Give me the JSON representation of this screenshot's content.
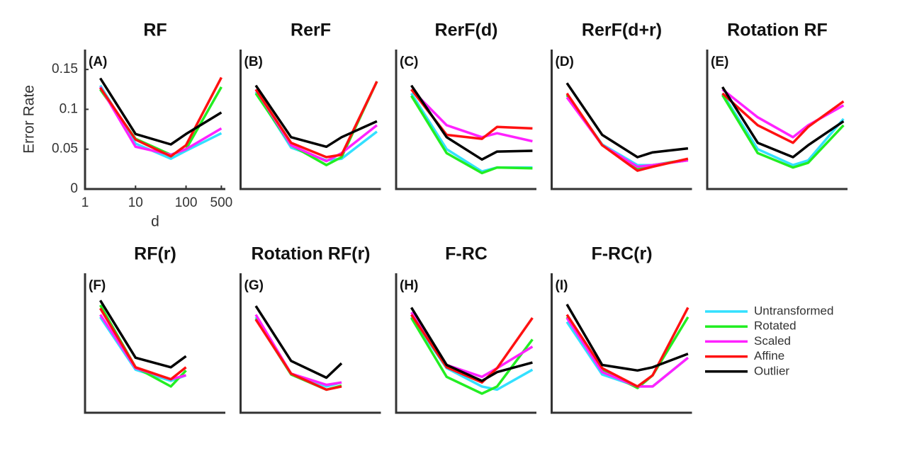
{
  "chart_data": [
    {
      "type": "line",
      "title": "RF",
      "panel_label": "(A)",
      "y_label": "Error Rate",
      "x_label": "d",
      "log_x": true,
      "xlim": [
        1,
        600
      ],
      "ylim": [
        0,
        0.175
      ],
      "xticks": [
        1,
        10,
        100,
        500
      ],
      "yticks": [
        0,
        0.05,
        0.1,
        0.15
      ],
      "x": [
        2,
        10,
        50,
        100,
        500
      ],
      "series": [
        {
          "name": "Untransformed",
          "color": "#33e0ff",
          "values": [
            0.13,
            0.057,
            0.038,
            0.048,
            0.07
          ]
        },
        {
          "name": "Rotated",
          "color": "#22ee22",
          "values": [
            0.125,
            0.063,
            0.043,
            0.05,
            0.128
          ]
        },
        {
          "name": "Scaled",
          "color": "#ff22ff",
          "values": [
            0.128,
            0.053,
            0.043,
            0.05,
            0.076
          ]
        },
        {
          "name": "Affine",
          "color": "#ff1111",
          "values": [
            0.127,
            0.062,
            0.041,
            0.055,
            0.14
          ]
        },
        {
          "name": "Outlier",
          "color": "#000000",
          "values": [
            0.139,
            0.069,
            0.056,
            0.069,
            0.096
          ]
        }
      ]
    },
    {
      "type": "line",
      "title": "RerF",
      "panel_label": "(B)",
      "log_x": true,
      "xlim": [
        1,
        600
      ],
      "ylim": [
        0,
        0.175
      ],
      "x": [
        2,
        10,
        50,
        100,
        500
      ],
      "series": [
        {
          "name": "Untransformed",
          "color": "#33e0ff",
          "values": [
            0.122,
            0.052,
            0.036,
            0.038,
            0.072
          ]
        },
        {
          "name": "Rotated",
          "color": "#22ee22",
          "values": [
            0.12,
            0.055,
            0.03,
            0.04,
            0.135
          ]
        },
        {
          "name": "Scaled",
          "color": "#ff22ff",
          "values": [
            0.125,
            0.055,
            0.035,
            0.045,
            0.08
          ]
        },
        {
          "name": "Affine",
          "color": "#ff1111",
          "values": [
            0.125,
            0.058,
            0.04,
            0.043,
            0.135
          ]
        },
        {
          "name": "Outlier",
          "color": "#000000",
          "values": [
            0.13,
            0.065,
            0.053,
            0.065,
            0.085
          ]
        }
      ]
    },
    {
      "type": "line",
      "title": "RerF(d)",
      "panel_label": "(C)",
      "log_x": true,
      "xlim": [
        1,
        600
      ],
      "ylim": [
        0,
        0.175
      ],
      "x": [
        2,
        10,
        50,
        100,
        500
      ],
      "series": [
        {
          "name": "Untransformed",
          "color": "#33e0ff",
          "values": [
            0.12,
            0.05,
            0.022,
            0.027,
            0.027
          ]
        },
        {
          "name": "Rotated",
          "color": "#22ee22",
          "values": [
            0.117,
            0.045,
            0.02,
            0.027,
            0.026
          ]
        },
        {
          "name": "Scaled",
          "color": "#ff22ff",
          "values": [
            0.125,
            0.08,
            0.065,
            0.07,
            0.06
          ]
        },
        {
          "name": "Affine",
          "color": "#ff1111",
          "values": [
            0.125,
            0.068,
            0.063,
            0.078,
            0.076
          ]
        },
        {
          "name": "Outlier",
          "color": "#000000",
          "values": [
            0.13,
            0.065,
            0.037,
            0.047,
            0.048
          ]
        }
      ]
    },
    {
      "type": "line",
      "title": "RerF(d+r)",
      "panel_label": "(D)",
      "log_x": true,
      "xlim": [
        1,
        600
      ],
      "ylim": [
        0,
        0.175
      ],
      "x": [
        2,
        10,
        50,
        100,
        500
      ],
      "series": [
        {
          "name": "Untransformed",
          "color": "#33e0ff",
          "values": [
            0.118,
            0.056,
            0.03,
            0.03,
            0.036
          ]
        },
        {
          "name": "Rotated",
          "color": "#22ee22",
          "values": [
            0.118,
            0.055,
            0.025,
            0.03,
            0.037
          ]
        },
        {
          "name": "Scaled",
          "color": "#ff22ff",
          "values": [
            0.115,
            0.055,
            0.028,
            0.03,
            0.036
          ]
        },
        {
          "name": "Affine",
          "color": "#ff1111",
          "values": [
            0.12,
            0.055,
            0.023,
            0.028,
            0.038
          ]
        },
        {
          "name": "Outlier",
          "color": "#000000",
          "values": [
            0.133,
            0.068,
            0.04,
            0.046,
            0.051
          ]
        }
      ]
    },
    {
      "type": "line",
      "title": "Rotation RF",
      "panel_label": "(E)",
      "log_x": true,
      "xlim": [
        1,
        600
      ],
      "ylim": [
        0,
        0.175
      ],
      "x": [
        2,
        10,
        50,
        100,
        500
      ],
      "series": [
        {
          "name": "Untransformed",
          "color": "#33e0ff",
          "values": [
            0.12,
            0.05,
            0.03,
            0.036,
            0.088
          ]
        },
        {
          "name": "Rotated",
          "color": "#22ee22",
          "values": [
            0.118,
            0.045,
            0.027,
            0.033,
            0.08
          ]
        },
        {
          "name": "Scaled",
          "color": "#ff22ff",
          "values": [
            0.125,
            0.09,
            0.065,
            0.08,
            0.105
          ]
        },
        {
          "name": "Affine",
          "color": "#ff1111",
          "values": [
            0.12,
            0.08,
            0.058,
            0.078,
            0.11
          ]
        },
        {
          "name": "Outlier",
          "color": "#000000",
          "values": [
            0.128,
            0.058,
            0.04,
            0.055,
            0.085
          ]
        }
      ]
    },
    {
      "type": "line",
      "title": "RF(r)",
      "panel_label": "(F)",
      "log_x": true,
      "xlim": [
        1,
        600
      ],
      "ylim": [
        0,
        0.175
      ],
      "x": [
        2,
        10,
        50,
        100
      ],
      "series": [
        {
          "name": "Untransformed",
          "color": "#33e0ff",
          "values": [
            0.12,
            0.054,
            0.04,
            0.047
          ]
        },
        {
          "name": "Rotated",
          "color": "#22ee22",
          "values": [
            0.135,
            0.057,
            0.033,
            0.053
          ]
        },
        {
          "name": "Scaled",
          "color": "#ff22ff",
          "values": [
            0.123,
            0.056,
            0.042,
            0.047
          ]
        },
        {
          "name": "Affine",
          "color": "#ff1111",
          "values": [
            0.131,
            0.057,
            0.042,
            0.057
          ]
        },
        {
          "name": "Outlier",
          "color": "#000000",
          "values": [
            0.141,
            0.069,
            0.057,
            0.071
          ]
        }
      ]
    },
    {
      "type": "line",
      "title": "Rotation RF(r)",
      "panel_label": "(G)",
      "log_x": true,
      "xlim": [
        1,
        600
      ],
      "ylim": [
        0,
        0.175
      ],
      "x": [
        2,
        10,
        50,
        100
      ],
      "series": [
        {
          "name": "Untransformed",
          "color": "#33e0ff",
          "values": [
            0.12,
            0.049,
            0.033,
            0.038
          ]
        },
        {
          "name": "Rotated",
          "color": "#22ee22",
          "values": [
            0.118,
            0.048,
            0.029,
            0.034
          ]
        },
        {
          "name": "Scaled",
          "color": "#ff22ff",
          "values": [
            0.123,
            0.049,
            0.035,
            0.038
          ]
        },
        {
          "name": "Affine",
          "color": "#ff1111",
          "values": [
            0.117,
            0.049,
            0.029,
            0.033
          ]
        },
        {
          "name": "Outlier",
          "color": "#000000",
          "values": [
            0.134,
            0.065,
            0.044,
            0.062
          ]
        }
      ]
    },
    {
      "type": "line",
      "title": "F-RC",
      "panel_label": "(H)",
      "log_x": true,
      "xlim": [
        1,
        600
      ],
      "ylim": [
        0,
        0.175
      ],
      "x": [
        2,
        10,
        50,
        100,
        500
      ],
      "series": [
        {
          "name": "Untransformed",
          "color": "#33e0ff",
          "values": [
            0.12,
            0.056,
            0.033,
            0.029,
            0.054
          ]
        },
        {
          "name": "Rotated",
          "color": "#22ee22",
          "values": [
            0.119,
            0.045,
            0.024,
            0.033,
            0.092
          ]
        },
        {
          "name": "Scaled",
          "color": "#ff22ff",
          "values": [
            0.126,
            0.06,
            0.045,
            0.056,
            0.083
          ]
        },
        {
          "name": "Affine",
          "color": "#ff1111",
          "values": [
            0.123,
            0.057,
            0.038,
            0.056,
            0.119
          ]
        },
        {
          "name": "Outlier",
          "color": "#000000",
          "values": [
            0.132,
            0.06,
            0.04,
            0.051,
            0.063
          ]
        }
      ]
    },
    {
      "type": "line",
      "title": "F-RC(r)",
      "panel_label": "(I)",
      "log_x": true,
      "xlim": [
        1,
        600
      ],
      "ylim": [
        0,
        0.175
      ],
      "x": [
        2,
        10,
        50,
        100,
        500
      ],
      "series": [
        {
          "name": "Untransformed",
          "color": "#33e0ff",
          "values": [
            0.114,
            0.048,
            0.033,
            0.033,
            0.069
          ]
        },
        {
          "name": "Rotated",
          "color": "#22ee22",
          "values": [
            0.12,
            0.054,
            0.031,
            0.047,
            0.12
          ]
        },
        {
          "name": "Scaled",
          "color": "#ff22ff",
          "values": [
            0.119,
            0.051,
            0.033,
            0.033,
            0.069
          ]
        },
        {
          "name": "Affine",
          "color": "#ff1111",
          "values": [
            0.123,
            0.056,
            0.033,
            0.047,
            0.132
          ]
        },
        {
          "name": "Outlier",
          "color": "#000000",
          "values": [
            0.136,
            0.06,
            0.053,
            0.057,
            0.074
          ]
        }
      ]
    }
  ]
}
